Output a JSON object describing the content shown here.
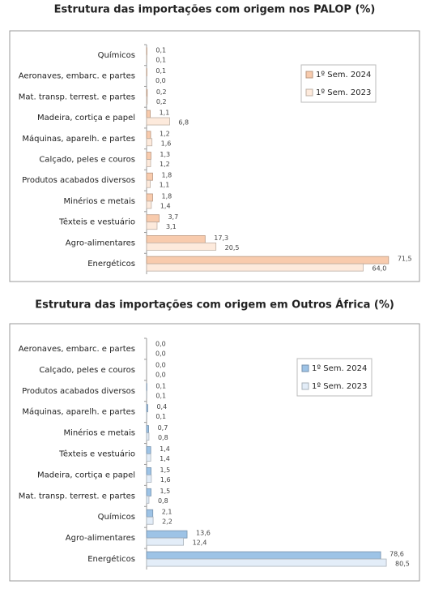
{
  "chart_data": [
    {
      "type": "bar",
      "orientation": "horizontal",
      "title": "Estrutura das importações com origem nos PALOP (%)",
      "categories": [
        "Químicos",
        "Aeronaves, embarc. e partes",
        "Mat. transp. terrest. e partes",
        "Madeira, cortiça e papel",
        "Máquinas, aparelh. e partes",
        "Calçado, peles e couros",
        "Produtos acabados diversos",
        "Minérios e metais",
        "Têxteis e vestuário",
        "Agro-alimentares",
        "Energéticos"
      ],
      "series": [
        {
          "name": "1º Sem. 2024",
          "color": "#f8cbad",
          "values": [
            0.1,
            0.1,
            0.2,
            1.1,
            1.2,
            1.3,
            1.8,
            1.8,
            3.7,
            17.3,
            71.5
          ],
          "value_labels": [
            "0,1",
            "0,1",
            "0,2",
            "1,1",
            "1,2",
            "1,3",
            "1,8",
            "1,8",
            "3,7",
            "17,3",
            "71,5"
          ]
        },
        {
          "name": "1º Sem. 2023",
          "color": "#fdeadc",
          "values": [
            0.1,
            0.0,
            0.2,
            6.8,
            1.6,
            1.2,
            1.1,
            1.4,
            3.1,
            20.5,
            64.0
          ],
          "value_labels": [
            "0,1",
            "0,0",
            "0,2",
            "6,8",
            "1,6",
            "1,2",
            "1,1",
            "1,4",
            "3,1",
            "20,5",
            "64,0"
          ]
        }
      ],
      "xlim": [
        0,
        78
      ],
      "legend": "upper right"
    },
    {
      "type": "bar",
      "orientation": "horizontal",
      "title": "Estrutura das importações com origem em Outros África (%)",
      "categories": [
        "Aeronaves, embarc. e partes",
        "Calçado, peles e couros",
        "Produtos acabados diversos",
        "Máquinas, aparelh. e partes",
        "Minérios e metais",
        "Têxteis e vestuário",
        "Madeira, cortiça e papel",
        "Mat. transp. terrest. e partes",
        "Químicos",
        "Agro-alimentares",
        "Energéticos"
      ],
      "series": [
        {
          "name": "1º Sem. 2024",
          "color": "#9dc3e6",
          "values": [
            0.0,
            0.0,
            0.1,
            0.4,
            0.7,
            1.4,
            1.5,
            1.5,
            2.1,
            13.6,
            78.6
          ],
          "value_labels": [
            "0,0",
            "0,0",
            "0,1",
            "0,4",
            "0,7",
            "1,4",
            "1,5",
            "1,5",
            "2,1",
            "13,6",
            "78,6"
          ]
        },
        {
          "name": "1º Sem. 2023",
          "color": "#e3edf8",
          "values": [
            0.0,
            0.0,
            0.1,
            0.1,
            0.8,
            1.4,
            1.6,
            0.8,
            2.2,
            12.4,
            80.5
          ],
          "value_labels": [
            "0,0",
            "0,0",
            "0,1",
            "0,1",
            "0,8",
            "1,4",
            "1,6",
            "0,8",
            "2,2",
            "12,4",
            "80,5"
          ]
        }
      ],
      "xlim": [
        0,
        90
      ],
      "legend": "upper right"
    }
  ]
}
